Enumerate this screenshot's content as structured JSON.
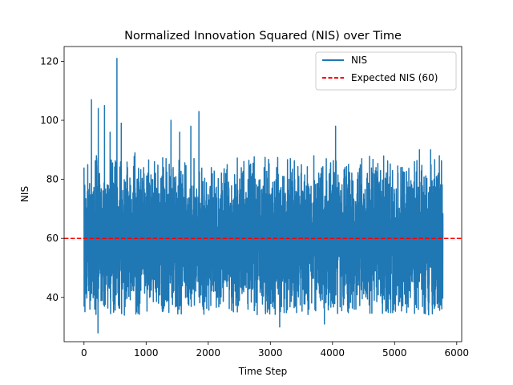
{
  "chart_data": {
    "type": "line",
    "title": "Normalized Innovation Squared (NIS) over Time",
    "xlabel": "Time Step",
    "ylabel": "NIS",
    "xlim": [
      -320,
      6080
    ],
    "ylim": [
      25,
      125
    ],
    "xticks": [
      0,
      1000,
      2000,
      3000,
      4000,
      5000,
      6000
    ],
    "yticks": [
      40,
      60,
      80,
      100,
      120
    ],
    "grid": false,
    "legend_position": "top-right",
    "series": [
      {
        "name": "NIS",
        "color": "#1f77b4",
        "n_points": 5780,
        "mean": 60,
        "std": 11,
        "min": 28,
        "max": 121,
        "peaks": [
          [
            0,
            84
          ],
          [
            60,
            85
          ],
          [
            95,
            36
          ],
          [
            110,
            70
          ],
          [
            120,
            107
          ],
          [
            155,
            42
          ],
          [
            200,
            88
          ],
          [
            225,
            28
          ],
          [
            230,
            104
          ],
          [
            290,
            39
          ],
          [
            330,
            105
          ],
          [
            380,
            44
          ],
          [
            420,
            96
          ],
          [
            480,
            57
          ],
          [
            530,
            121
          ],
          [
            600,
            99
          ],
          [
            650,
            34
          ],
          [
            700,
            84
          ],
          [
            760,
            45
          ],
          [
            820,
            89
          ],
          [
            900,
            38
          ],
          [
            960,
            84
          ],
          [
            1030,
            44
          ],
          [
            1100,
            80
          ],
          [
            1200,
            38
          ],
          [
            1280,
            84
          ],
          [
            1350,
            39
          ],
          [
            1400,
            100
          ],
          [
            1470,
            55
          ],
          [
            1540,
            96
          ],
          [
            1640,
            44
          ],
          [
            1720,
            98
          ],
          [
            1810,
            50
          ],
          [
            1850,
            103
          ],
          [
            1920,
            36
          ],
          [
            2050,
            84
          ],
          [
            2150,
            40
          ],
          [
            2280,
            82
          ],
          [
            2400,
            38
          ],
          [
            2550,
            82
          ],
          [
            2640,
            36
          ],
          [
            2700,
            81
          ],
          [
            2900,
            84
          ],
          [
            3000,
            38
          ],
          [
            3100,
            84
          ],
          [
            3150,
            30
          ],
          [
            3200,
            81
          ],
          [
            3300,
            80
          ],
          [
            3400,
            37
          ],
          [
            3500,
            85
          ],
          [
            3620,
            36
          ],
          [
            3700,
            88
          ],
          [
            3800,
            40
          ],
          [
            3870,
            31
          ],
          [
            3900,
            87
          ],
          [
            4000,
            38
          ],
          [
            4050,
            98
          ],
          [
            4200,
            84
          ],
          [
            4350,
            36
          ],
          [
            4400,
            80
          ],
          [
            4600,
            39
          ],
          [
            4700,
            84
          ],
          [
            4800,
            38
          ],
          [
            4870,
            80
          ],
          [
            5000,
            39
          ],
          [
            5100,
            84
          ],
          [
            5200,
            38
          ],
          [
            5320,
            86
          ],
          [
            5400,
            90
          ],
          [
            5500,
            40
          ],
          [
            5580,
            90
          ],
          [
            5650,
            37
          ],
          [
            5720,
            88
          ],
          [
            5780,
            60
          ]
        ]
      },
      {
        "name": "Expected NIS (60)",
        "color": "#ff0000",
        "dash": "dashed",
        "value": 60
      }
    ]
  }
}
